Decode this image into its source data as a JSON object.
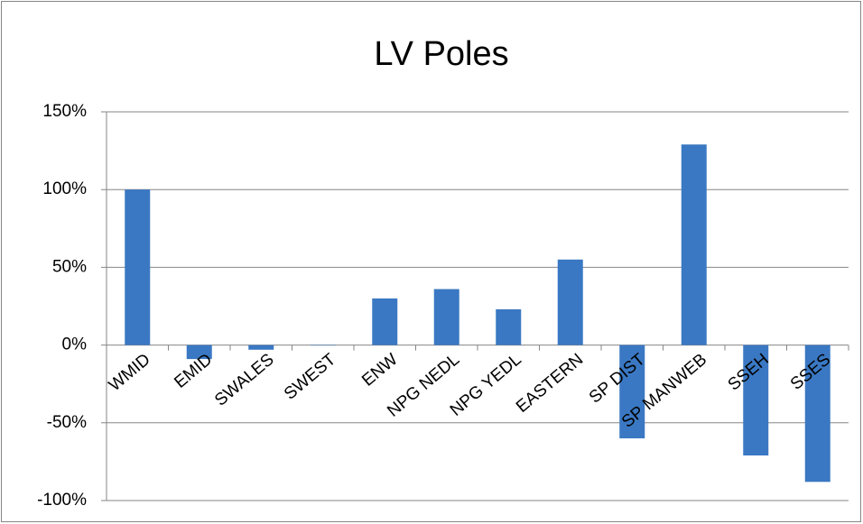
{
  "chart_data": {
    "type": "bar",
    "title": "LV Poles",
    "categories": [
      "WMID",
      "EMID",
      "SWALES",
      "SWEST",
      "ENW",
      "NPG NEDL",
      "NPG YEDL",
      "EASTERN",
      "SP DIST",
      "SP MANWEB",
      "SSEH",
      "SSES"
    ],
    "values": [
      100,
      -9,
      -3,
      0,
      30,
      36,
      23,
      55,
      -60,
      129,
      -71,
      -88
    ],
    "color": "#3a78c3",
    "ylim": [
      -100,
      150
    ],
    "yticks": [
      {
        "value": -100,
        "label": "-100%"
      },
      {
        "value": -50,
        "label": "-50%"
      },
      {
        "value": 0,
        "label": "0%"
      },
      {
        "value": 50,
        "label": "50%"
      },
      {
        "value": 100,
        "label": "100%"
      },
      {
        "value": 150,
        "label": "150%"
      }
    ],
    "grid": true
  }
}
